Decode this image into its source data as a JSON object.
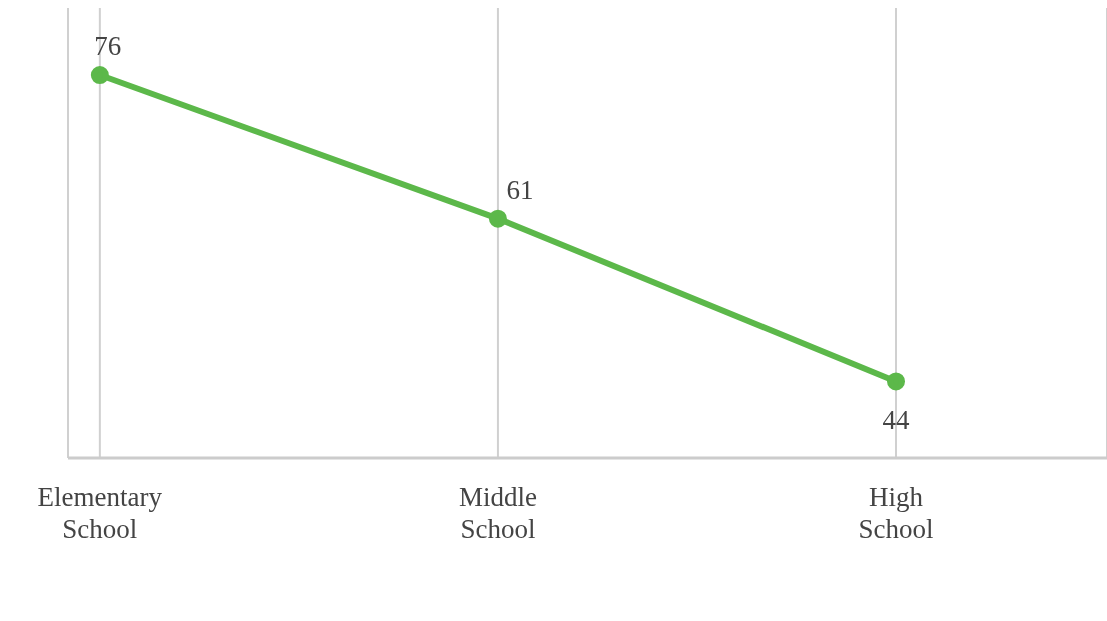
{
  "chart_data": {
    "type": "line",
    "categories": [
      "Elementary School",
      "Middle School",
      "High School"
    ],
    "series": [
      {
        "color": "#5cb84a",
        "values": [
          76,
          61,
          44
        ]
      }
    ],
    "ylim": [
      36,
      83
    ],
    "grid": "x",
    "data_labels": true,
    "marker": "circle",
    "line_style": "solid",
    "tick_labels": "x"
  }
}
